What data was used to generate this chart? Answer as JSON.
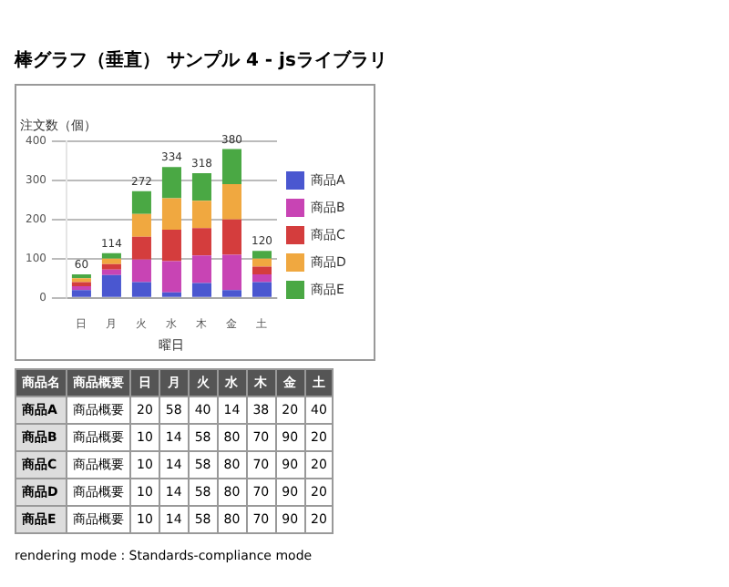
{
  "chart_data": [
    {
      "type": "bar",
      "title": "棒グラフ（垂直） サンプル 4 - jsライブラリ",
      "ylabel": "注文数（個）",
      "xlabel": "曜日",
      "categories": [
        "日",
        "月",
        "火",
        "水",
        "木",
        "金",
        "土"
      ],
      "series": [
        {
          "name": "商品A",
          "color": "#4a57d0",
          "values": [
            20,
            58,
            40,
            14,
            38,
            20,
            40
          ]
        },
        {
          "name": "商品B",
          "color": "#c844b4",
          "values": [
            10,
            14,
            58,
            80,
            70,
            90,
            20
          ]
        },
        {
          "name": "商品C",
          "color": "#d43d3d",
          "values": [
            10,
            14,
            58,
            80,
            70,
            90,
            20
          ]
        },
        {
          "name": "商品D",
          "color": "#f0a840",
          "values": [
            10,
            14,
            58,
            80,
            70,
            90,
            20
          ]
        },
        {
          "name": "商品E",
          "color": "#4aa844",
          "values": [
            10,
            14,
            58,
            80,
            70,
            90,
            20
          ]
        }
      ],
      "stacked": true,
      "ylim": [
        0,
        400
      ],
      "yticks": [
        0,
        100,
        200,
        300,
        400
      ],
      "grid": "y",
      "legend": "right",
      "totals": [
        "60",
        "114",
        "272",
        "334",
        "318",
        "380",
        "120"
      ]
    },
    {
      "type": "heatmap",
      "categories": [
        "日",
        "月",
        "火",
        "水",
        "木",
        "金",
        "土"
      ],
      "y_categories": [
        "商品A",
        "商品B",
        "商品C",
        "商品D",
        "商品E"
      ],
      "y2_categories": [
        "商品概要",
        "商品概要",
        "商品概要",
        "商品概要",
        "商品概要"
      ],
      "cells": [
        [
          20,
          58,
          40,
          14,
          38,
          20,
          40
        ],
        [
          10,
          14,
          58,
          80,
          70,
          90,
          20
        ],
        [
          10,
          14,
          58,
          80,
          70,
          90,
          20
        ],
        [
          10,
          14,
          58,
          80,
          70,
          90,
          20
        ],
        [
          10,
          14,
          58,
          80,
          70,
          90,
          20
        ]
      ],
      "ylabel": "商品名",
      "y2label": "商品概要",
      "data_labels": true,
      "annotations": [
        "rendering mode : Standards-compliance mode"
      ]
    }
  ]
}
